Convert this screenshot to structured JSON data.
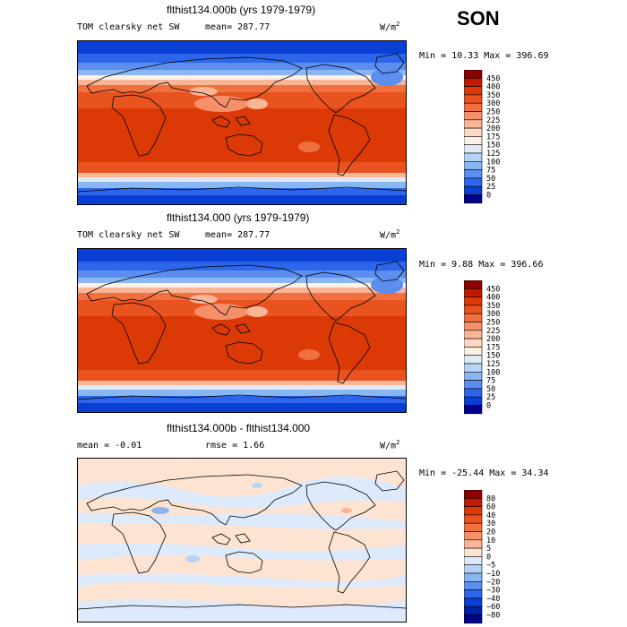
{
  "season": "SON",
  "panels": [
    {
      "title": "flthist134.000b (yrs 1979-1979)",
      "field": "TOM clearsky net SW",
      "stat": "mean=  287.77",
      "units": "W/m",
      "units_sup": "2",
      "minmax": "Min =   10.33 Max = 396.69",
      "colorbar": {
        "labels": [
          "450",
          "400",
          "350",
          "300",
          "250",
          "225",
          "200",
          "175",
          "150",
          "125",
          "100",
          "75",
          "50",
          "25",
          "0"
        ],
        "colors": [
          "#8b0000",
          "#c21a00",
          "#db3a07",
          "#e8531f",
          "#f0703f",
          "#f6906a",
          "#fab496",
          "#fdd9c4",
          "#fdf0e6",
          "#deebf7",
          "#b6d3f5",
          "#8ab7f2",
          "#5c8ef0",
          "#2d66ea",
          "#0a3fd6",
          "#00008b"
        ]
      },
      "chart_data": {
        "type": "heatmap",
        "title": "flthist134.000b (yrs 1979-1979)",
        "variable": "TOM clearsky net SW",
        "units": "W/m2",
        "mean": 287.77,
        "min": 10.33,
        "max": 396.69,
        "contour_levels": [
          0,
          25,
          50,
          75,
          100,
          125,
          150,
          175,
          200,
          225,
          250,
          300,
          350,
          400,
          450
        ]
      }
    },
    {
      "title": "flthist134.000 (yrs 1979-1979)",
      "field": "TOM clearsky net SW",
      "stat": "mean=  287.77",
      "units": "W/m",
      "units_sup": "2",
      "minmax": "Min =    9.88 Max = 396.66",
      "colorbar": {
        "labels": [
          "450",
          "400",
          "350",
          "300",
          "250",
          "225",
          "200",
          "175",
          "150",
          "125",
          "100",
          "75",
          "50",
          "25",
          "0"
        ],
        "colors": [
          "#8b0000",
          "#c21a00",
          "#db3a07",
          "#e8531f",
          "#f0703f",
          "#f6906a",
          "#fab496",
          "#fdd9c4",
          "#fdf0e6",
          "#deebf7",
          "#b6d3f5",
          "#8ab7f2",
          "#5c8ef0",
          "#2d66ea",
          "#0a3fd6",
          "#00008b"
        ]
      },
      "chart_data": {
        "type": "heatmap",
        "title": "flthist134.000 (yrs 1979-1979)",
        "variable": "TOM clearsky net SW",
        "units": "W/m2",
        "mean": 287.77,
        "min": 9.88,
        "max": 396.66,
        "contour_levels": [
          0,
          25,
          50,
          75,
          100,
          125,
          150,
          175,
          200,
          225,
          250,
          300,
          350,
          400,
          450
        ]
      }
    },
    {
      "title": "flthist134.000b - flthist134.000",
      "field": "mean =   -0.01",
      "stat": "rmse =    1.66",
      "units": "W/m",
      "units_sup": "2",
      "minmax": "Min = -25.44 Max =   34.34",
      "colorbar": {
        "labels": [
          "80",
          "60",
          "40",
          "30",
          "20",
          "10",
          "5",
          "0",
          "−5",
          "−10",
          "−20",
          "−30",
          "−40",
          "−60",
          "−80"
        ],
        "colors": [
          "#8b0000",
          "#c21a00",
          "#db3a07",
          "#e8531f",
          "#f0703f",
          "#f6906a",
          "#fab496",
          "#fde3d2",
          "#ddeafc",
          "#b6d3f5",
          "#8ab7f2",
          "#5c8ef0",
          "#2d66ea",
          "#0a3fd6",
          "#001fa8",
          "#00008b"
        ]
      },
      "chart_data": {
        "type": "heatmap",
        "title": "flthist134.000b - flthist134.000",
        "variable": "TOM clearsky net SW difference",
        "units": "W/m2",
        "mean": -0.01,
        "rmse": 1.66,
        "min": -25.44,
        "max": 34.34,
        "contour_levels": [
          -80,
          -60,
          -40,
          -30,
          -20,
          -10,
          -5,
          0,
          5,
          10,
          20,
          30,
          40,
          60,
          80
        ]
      }
    }
  ]
}
